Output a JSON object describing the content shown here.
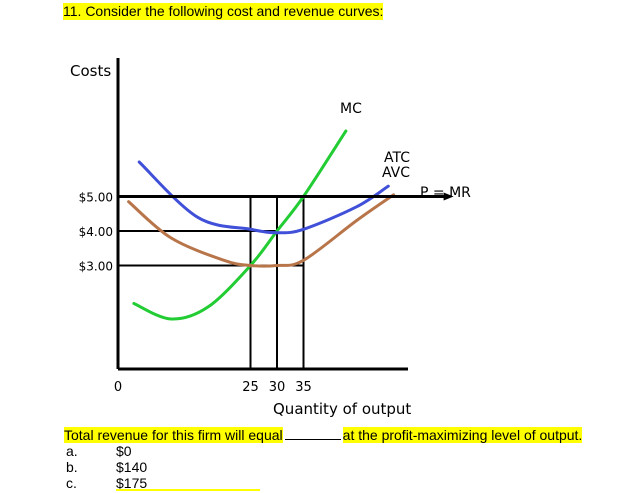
{
  "question": {
    "number_title": "11. Consider the following cost and revenue curves:"
  },
  "chart_data": {
    "type": "line",
    "ylabel": "Costs",
    "xlabel": "Quantity of output",
    "y_ticks": [
      {
        "value": 5,
        "label": "$5.00"
      },
      {
        "value": 4,
        "label": "$4.00"
      },
      {
        "value": 3,
        "label": "$3.00"
      }
    ],
    "x_ticks": [
      {
        "value": 0,
        "label": "0"
      },
      {
        "value": 25,
        "label": "25"
      },
      {
        "value": 30,
        "label": "30"
      },
      {
        "value": 35,
        "label": "35"
      }
    ],
    "xlim": [
      0,
      60
    ],
    "ylim": [
      0,
      6.5
    ],
    "series": [
      {
        "name": "MC",
        "color": "#22cc33",
        "points": [
          [
            3,
            1.9
          ],
          [
            10,
            1.45
          ],
          [
            17,
            1.8
          ],
          [
            25,
            3.0
          ],
          [
            30,
            4.0
          ],
          [
            35,
            5.0
          ],
          [
            43,
            6.9
          ]
        ]
      },
      {
        "name": "ATC",
        "color": "#4050d8",
        "points": [
          [
            4,
            6.0
          ],
          [
            15,
            4.4
          ],
          [
            25,
            4.05
          ],
          [
            30,
            3.95
          ],
          [
            35,
            4.05
          ],
          [
            45,
            4.7
          ],
          [
            51,
            5.3
          ]
        ]
      },
      {
        "name": "AVC",
        "color": "#b8754a",
        "points": [
          [
            2,
            4.85
          ],
          [
            10,
            3.8
          ],
          [
            20,
            3.15
          ],
          [
            25,
            3.0
          ],
          [
            30,
            3.0
          ],
          [
            35,
            3.15
          ],
          [
            45,
            4.3
          ],
          [
            52,
            5.05
          ]
        ]
      },
      {
        "name": "P = MR",
        "color": "#000000",
        "points": [
          [
            0,
            5.0
          ],
          [
            62,
            5.0
          ]
        ]
      }
    ],
    "guides": [
      {
        "y": 5,
        "x_from": 0,
        "x_to": 35
      },
      {
        "y": 4,
        "x_from": 0,
        "x_to": 30
      },
      {
        "y": 3,
        "x_from": 0,
        "x_to": 35
      },
      {
        "x": 25,
        "y_to": 5
      },
      {
        "x": 30,
        "y_to": 5
      },
      {
        "x": 35,
        "y_to": 5
      }
    ]
  },
  "prompt": {
    "before_blank": "Total revenue for this firm will equal",
    "after_blank": "at the profit-maximizing level of output."
  },
  "choices": [
    {
      "letter": "a.",
      "text": "$0"
    },
    {
      "letter": "b.",
      "text": "$140"
    },
    {
      "letter": "c.",
      "text": "$175"
    }
  ],
  "colors": {
    "highlight": "#ffff00"
  }
}
